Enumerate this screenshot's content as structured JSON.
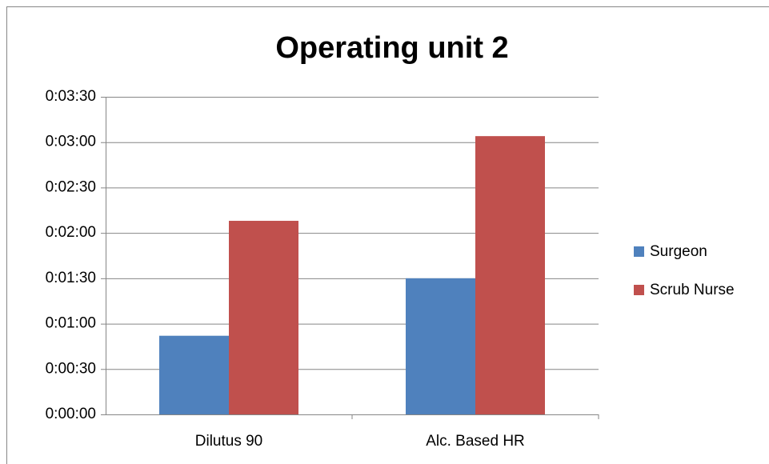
{
  "chart_data": {
    "type": "bar",
    "title": "Operating unit 2",
    "categories": [
      "Dilutus 90",
      "Alc. Based HR"
    ],
    "series": [
      {
        "name": "Surgeon",
        "color": "#4f81bd",
        "values": [
          52,
          90
        ]
      },
      {
        "name": "Scrub Nurse",
        "color": "#c0504d",
        "values": [
          128,
          184
        ]
      }
    ],
    "ylim": [
      0,
      210
    ],
    "yticks": [
      {
        "value": 0,
        "label": "0:00:00"
      },
      {
        "value": 30,
        "label": "0:00:30"
      },
      {
        "value": 60,
        "label": "0:01:00"
      },
      {
        "value": 90,
        "label": "0:01:30"
      },
      {
        "value": 120,
        "label": "0:02:00"
      },
      {
        "value": 150,
        "label": "0:02:30"
      },
      {
        "value": 180,
        "label": "0:03:00"
      },
      {
        "value": 210,
        "label": "0:03:30"
      }
    ],
    "grid": true,
    "legend": "right"
  }
}
